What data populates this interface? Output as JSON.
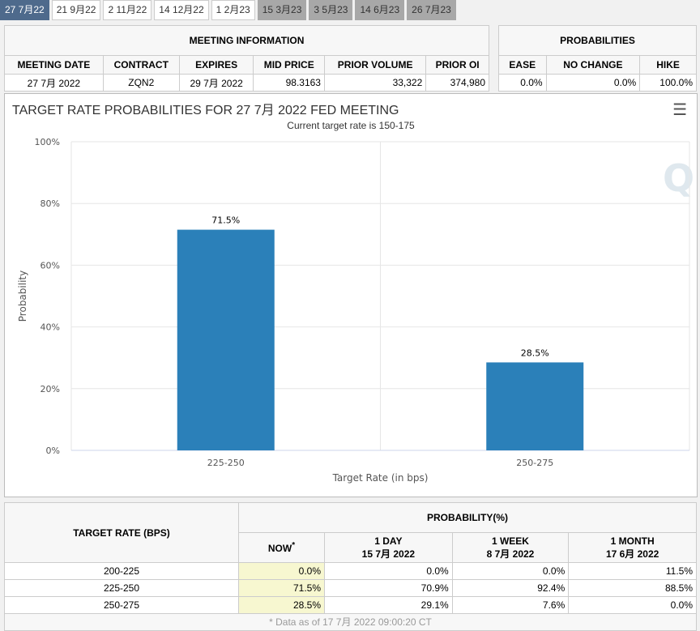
{
  "tabs": [
    {
      "label": "27 7月22",
      "state": "active"
    },
    {
      "label": "21 9月22",
      "state": "normal"
    },
    {
      "label": "2 11月22",
      "state": "normal"
    },
    {
      "label": "14 12月22",
      "state": "normal"
    },
    {
      "label": "1 2月23",
      "state": "normal"
    },
    {
      "label": "15 3月23",
      "state": "disabled"
    },
    {
      "label": "3 5月23",
      "state": "disabled"
    },
    {
      "label": "14 6月23",
      "state": "disabled"
    },
    {
      "label": "26 7月23",
      "state": "disabled"
    }
  ],
  "meeting": {
    "title": "MEETING INFORMATION",
    "headers": [
      "MEETING DATE",
      "CONTRACT",
      "EXPIRES",
      "MID PRICE",
      "PRIOR VOLUME",
      "PRIOR OI"
    ],
    "values": [
      "27 7月 2022",
      "ZQN2",
      "29 7月 2022",
      "98.3163",
      "33,322",
      "374,980"
    ]
  },
  "probabilities": {
    "title": "PROBABILITIES",
    "headers": [
      "EASE",
      "NO CHANGE",
      "HIKE"
    ],
    "values": [
      "0.0%",
      "0.0%",
      "100.0%"
    ]
  },
  "chart_data": {
    "type": "bar",
    "title": "TARGET RATE PROBABILITIES FOR 27 7月 2022 FED MEETING",
    "subtitle": "Current target rate is 150-175",
    "categories": [
      "225-250",
      "250-275"
    ],
    "values": [
      71.5,
      28.5
    ],
    "data_labels": [
      "71.5%",
      "28.5%"
    ],
    "xlabel": "Target Rate (in bps)",
    "ylabel": "Probability",
    "ylim": [
      0,
      100
    ],
    "yticks": [
      "0%",
      "20%",
      "40%",
      "60%",
      "80%",
      "100%"
    ],
    "color": "#2b80b9",
    "grid": true
  },
  "rates": {
    "col_header": "TARGET RATE (BPS)",
    "group_header": "PROBABILITY(%)",
    "columns": [
      {
        "label": "NOW",
        "sup": "*",
        "date": ""
      },
      {
        "label": "1 DAY",
        "date": "15 7月 2022"
      },
      {
        "label": "1 WEEK",
        "date": "8 7月 2022"
      },
      {
        "label": "1 MONTH",
        "date": "17 6月 2022"
      }
    ],
    "rows": [
      {
        "rate": "200-225",
        "values": [
          "0.0%",
          "0.0%",
          "0.0%",
          "11.5%"
        ]
      },
      {
        "rate": "225-250",
        "values": [
          "71.5%",
          "70.9%",
          "92.4%",
          "88.5%"
        ]
      },
      {
        "rate": "250-275",
        "values": [
          "28.5%",
          "29.1%",
          "7.6%",
          "0.0%"
        ]
      }
    ],
    "footnote": "* Data as of 17 7月 2022 09:00:20 CT"
  }
}
